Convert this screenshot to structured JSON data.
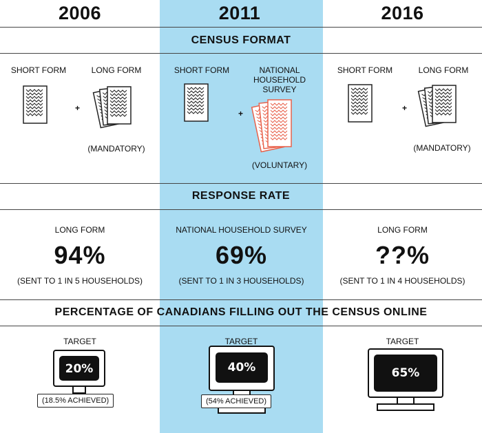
{
  "years": [
    "2006",
    "2011",
    "2016"
  ],
  "sections": {
    "format_title": "CENSUS FORMAT",
    "response_title": "RESPONSE RATE",
    "online_title": "PERCENTAGE OF CANADIANS FILLING OUT THE CENSUS ONLINE"
  },
  "census_format": [
    {
      "form_a": "SHORT FORM",
      "form_b": "LONG FORM",
      "plus": "+",
      "note": "(MANDATORY)"
    },
    {
      "form_a": "SHORT FORM",
      "form_b": "NATIONAL HOUSEHOLD SURVEY",
      "plus": "+",
      "note": "(VOLUNTARY)"
    },
    {
      "form_a": "SHORT FORM",
      "form_b": "LONG FORM",
      "plus": "+",
      "note": "(MANDATORY)"
    }
  ],
  "response_rate": [
    {
      "label": "LONG FORM",
      "value": "94%",
      "note": "(SENT TO 1 IN 5 HOUSEHOLDS)"
    },
    {
      "label": "NATIONAL HOUSEHOLD SURVEY",
      "value": "69%",
      "note": "(SENT TO 1 IN 3 HOUSEHOLDS)"
    },
    {
      "label": "LONG FORM",
      "value": "??%",
      "note": "(SENT TO 1 IN 4 HOUSEHOLDS)"
    }
  ],
  "online": [
    {
      "label": "TARGET",
      "value": "20%",
      "achieved": "(18.5% ACHIEVED)"
    },
    {
      "label": "TARGET",
      "value": "40%",
      "achieved": "(54% ACHIEVED)"
    },
    {
      "label": "TARGET",
      "value": "65%",
      "achieved": ""
    }
  ],
  "colors": {
    "highlight_column": "#a9dcf2",
    "nhs_form": "#e8614a",
    "ink": "#111111"
  }
}
